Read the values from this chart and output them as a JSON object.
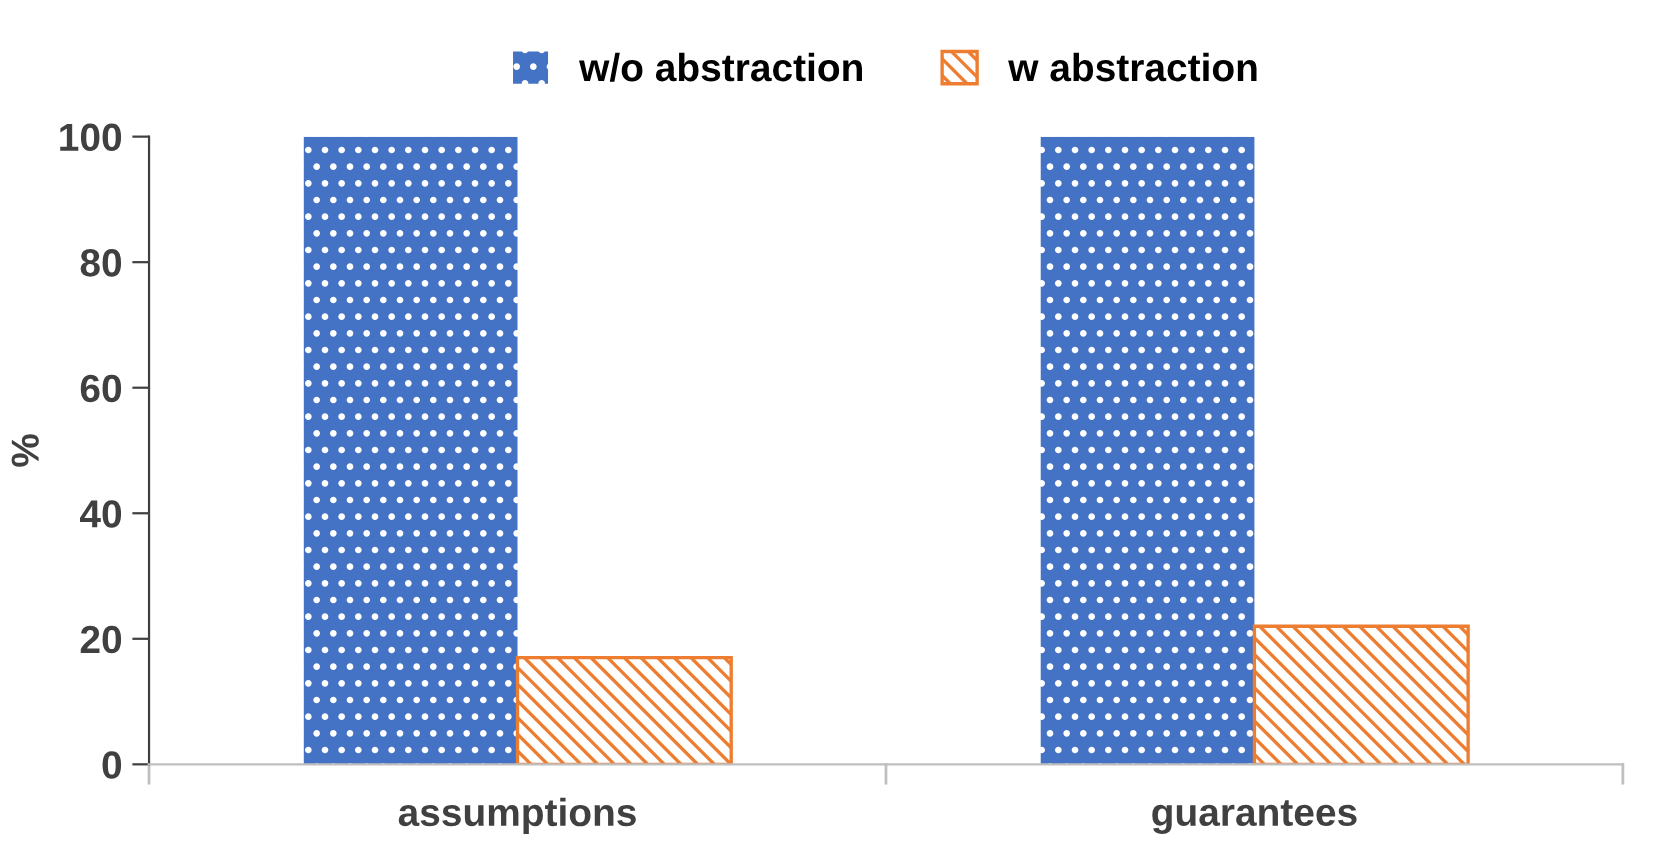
{
  "chart_data": {
    "type": "bar",
    "ylabel": "%",
    "categories": [
      "assumptions",
      "guarantees"
    ],
    "series": [
      {
        "name": "w/o abstraction",
        "color": "#4472c4",
        "values": [
          100,
          100
        ]
      },
      {
        "name": "w abstraction",
        "color": "#ed7d31",
        "values": [
          17,
          22
        ]
      }
    ],
    "ylim": [
      0,
      100
    ],
    "yticks": [
      0,
      20,
      40,
      60,
      80,
      100
    ],
    "grid": false,
    "legend": "top"
  }
}
